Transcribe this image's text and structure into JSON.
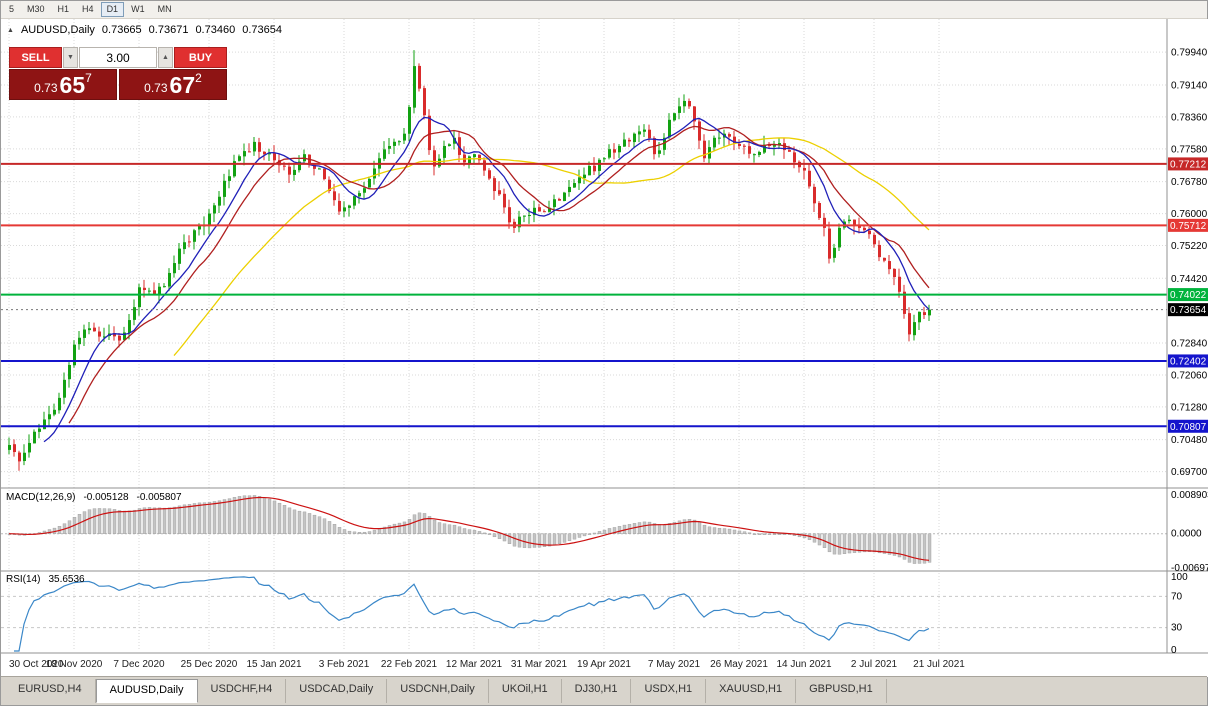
{
  "colors": {
    "bull": "#12a112",
    "bear": "#d92b2b",
    "grid": "#d9d9d9",
    "ma_fast": "#2020b8",
    "ma_mid": "#b02020",
    "ma_slow": "#ecd000",
    "macd_hist": "#c4c4c4",
    "macd_signal": "#cc1111",
    "rsi_line": "#3a87c8",
    "level_red1": "#c62828",
    "level_red2": "#e53935",
    "level_green": "#00b33c",
    "level_blue": "#1414cc",
    "level_black": "#000000",
    "sell_buy_btn": "#e03030",
    "price_box": "#8e1414"
  },
  "icons": {
    "collapse": "▲",
    "chevron_down": "▼",
    "chevron_up": "▲"
  },
  "toolbar": {
    "timeframes": [
      {
        "label": "5",
        "active": false
      },
      {
        "label": "M30",
        "active": false
      },
      {
        "label": "H1",
        "active": false
      },
      {
        "label": "H4",
        "active": false
      },
      {
        "label": "D1",
        "active": true
      },
      {
        "label": "W1",
        "active": false
      },
      {
        "label": "MN",
        "active": false
      }
    ]
  },
  "chart_header": {
    "symbol": "AUDUSD,Daily",
    "open": "0.73665",
    "high": "0.73671",
    "low": "0.73460",
    "close": "0.73654"
  },
  "trade_panel": {
    "sell_label": "SELL",
    "buy_label": "BUY",
    "volume": "3.00",
    "sell_price": {
      "small": "0.73",
      "big": "65",
      "pip": "7"
    },
    "buy_price": {
      "small": "0.73",
      "big": "67",
      "pip": "2"
    }
  },
  "macd_panel": {
    "name": "MACD(12,26,9)",
    "value_main": "-0.005128",
    "value_signal": "-0.005807",
    "axis_max": "0.008903",
    "axis_zero": "0.0000",
    "axis_min": "-0.006977",
    "params": {
      "fast": 12,
      "slow": 26,
      "signal": 9
    }
  },
  "rsi_panel": {
    "name": "RSI(14)",
    "value": "35.6536",
    "period": 14,
    "levels": [
      70,
      30
    ],
    "axis_labels": [
      "100",
      "70",
      "30",
      "0"
    ]
  },
  "bottom_tabs": [
    {
      "label": "EURUSD,H4",
      "active": false
    },
    {
      "label": "AUDUSD,Daily",
      "active": true
    },
    {
      "label": "USDCHF,H4",
      "active": false
    },
    {
      "label": "USDCAD,Daily",
      "active": false
    },
    {
      "label": "USDCNH,Daily",
      "active": false
    },
    {
      "label": "UKOil,H1",
      "active": false
    },
    {
      "label": "DJ30,H1",
      "active": false
    },
    {
      "label": "USDX,H1",
      "active": false
    },
    {
      "label": "XAUUSD,H1",
      "active": false
    },
    {
      "label": "GBPUSD,H1",
      "active": false
    }
  ],
  "chart_data": {
    "type": "candlestick",
    "symbol": "AUDUSD",
    "timeframe": "Daily",
    "last_ohlc": {
      "open": 0.73665,
      "high": 0.73671,
      "low": 0.7346,
      "close": 0.73654
    },
    "candle_count": 185,
    "y_axis": {
      "min": 0.693,
      "max": 0.8075,
      "ticks": [
        {
          "label": "0.79940",
          "value": 0.7994
        },
        {
          "label": "0.79140",
          "value": 0.7914
        },
        {
          "label": "0.78360",
          "value": 0.7836
        },
        {
          "label": "0.77580",
          "value": 0.7758
        },
        {
          "label": "0.76780",
          "value": 0.7678
        },
        {
          "label": "0.76000",
          "value": 0.76
        },
        {
          "label": "0.75220",
          "value": 0.7522
        },
        {
          "label": "0.74420",
          "value": 0.7442
        },
        {
          "label": "0.72840",
          "value": 0.7284
        },
        {
          "label": "0.72060",
          "value": 0.7206
        },
        {
          "label": "0.71280",
          "value": 0.7128
        },
        {
          "label": "0.70480",
          "value": 0.7048
        },
        {
          "label": "0.69700",
          "value": 0.697
        }
      ]
    },
    "horizontal_levels": [
      {
        "label": "0.77212",
        "value": 0.77212,
        "color_key": "level_red1",
        "current": false
      },
      {
        "label": "0.75712",
        "value": 0.75712,
        "color_key": "level_red2",
        "current": false
      },
      {
        "label": "0.74022",
        "value": 0.74022,
        "color_key": "level_green",
        "current": false
      },
      {
        "label": "0.73654",
        "value": 0.73654,
        "color_key": "level_black",
        "current": true
      },
      {
        "label": "0.72402",
        "value": 0.72402,
        "color_key": "level_blue",
        "current": false
      },
      {
        "label": "0.70807",
        "value": 0.70807,
        "color_key": "level_blue",
        "current": false
      }
    ],
    "x_dates": [
      {
        "label": "30 Oct 2020",
        "i": 0
      },
      {
        "label": "18 Nov 2020",
        "i": 13
      },
      {
        "label": "7 Dec 2020",
        "i": 26
      },
      {
        "label": "25 Dec 2020",
        "i": 40
      },
      {
        "label": "15 Jan 2021",
        "i": 53
      },
      {
        "label": "3 Feb 2021",
        "i": 67
      },
      {
        "label": "22 Feb 2021",
        "i": 80
      },
      {
        "label": "12 Mar 2021",
        "i": 93
      },
      {
        "label": "31 Mar 2021",
        "i": 106
      },
      {
        "label": "19 Apr 2021",
        "i": 119
      },
      {
        "label": "7 May 2021",
        "i": 133
      },
      {
        "label": "26 May 2021",
        "i": 146
      },
      {
        "label": "14 Jun 2021",
        "i": 159
      },
      {
        "label": "2 Jul 2021",
        "i": 173
      },
      {
        "label": "21 Jul 2021",
        "i": 186
      }
    ],
    "moving_averages": [
      {
        "period": 34,
        "color_key": "ma_slow"
      },
      {
        "period": 13,
        "color_key": "ma_mid"
      },
      {
        "period": 8,
        "color_key": "ma_fast"
      }
    ],
    "price_anchors": [
      [
        0,
        0.7035
      ],
      [
        2,
        0.6995
      ],
      [
        4,
        0.704
      ],
      [
        6,
        0.7075
      ],
      [
        8,
        0.711
      ],
      [
        10,
        0.715
      ],
      [
        13,
        0.728
      ],
      [
        16,
        0.732
      ],
      [
        19,
        0.73
      ],
      [
        22,
        0.729
      ],
      [
        24,
        0.734
      ],
      [
        26,
        0.742
      ],
      [
        29,
        0.74
      ],
      [
        32,
        0.7455
      ],
      [
        35,
        0.753
      ],
      [
        38,
        0.757
      ],
      [
        40,
        0.76
      ],
      [
        43,
        0.768
      ],
      [
        46,
        0.774
      ],
      [
        49,
        0.7775
      ],
      [
        51,
        0.7745
      ],
      [
        53,
        0.773
      ],
      [
        56,
        0.7695
      ],
      [
        59,
        0.7745
      ],
      [
        62,
        0.771
      ],
      [
        64,
        0.7655
      ],
      [
        66,
        0.7605
      ],
      [
        67,
        0.7615
      ],
      [
        70,
        0.765
      ],
      [
        73,
        0.771
      ],
      [
        76,
        0.7765
      ],
      [
        79,
        0.7795
      ],
      [
        80,
        0.786
      ],
      [
        81,
        0.796
      ],
      [
        82,
        0.7905
      ],
      [
        83,
        0.784
      ],
      [
        84,
        0.7755
      ],
      [
        85,
        0.7715
      ],
      [
        87,
        0.7765
      ],
      [
        89,
        0.7785
      ],
      [
        91,
        0.7725
      ],
      [
        93,
        0.7745
      ],
      [
        95,
        0.7705
      ],
      [
        97,
        0.7655
      ],
      [
        99,
        0.7615
      ],
      [
        101,
        0.7565
      ],
      [
        103,
        0.7595
      ],
      [
        106,
        0.7605
      ],
      [
        109,
        0.7635
      ],
      [
        112,
        0.7665
      ],
      [
        115,
        0.7695
      ],
      [
        119,
        0.7735
      ],
      [
        122,
        0.7765
      ],
      [
        125,
        0.7795
      ],
      [
        127,
        0.7805
      ],
      [
        129,
        0.7745
      ],
      [
        131,
        0.7785
      ],
      [
        133,
        0.7845
      ],
      [
        135,
        0.7875
      ],
      [
        137,
        0.7825
      ],
      [
        139,
        0.7735
      ],
      [
        141,
        0.7785
      ],
      [
        143,
        0.7795
      ],
      [
        146,
        0.7765
      ],
      [
        149,
        0.7745
      ],
      [
        152,
        0.7765
      ],
      [
        155,
        0.7755
      ],
      [
        157,
        0.7725
      ],
      [
        159,
        0.7705
      ],
      [
        161,
        0.7625
      ],
      [
        163,
        0.7565
      ],
      [
        164,
        0.749
      ],
      [
        166,
        0.7565
      ],
      [
        168,
        0.7585
      ],
      [
        170,
        0.7565
      ],
      [
        173,
        0.7525
      ],
      [
        175,
        0.7485
      ],
      [
        177,
        0.7445
      ],
      [
        179,
        0.7355
      ],
      [
        180,
        0.7305
      ],
      [
        181,
        0.7335
      ],
      [
        182,
        0.736
      ],
      [
        184,
        0.73654
      ]
    ],
    "wick_overrides": [
      [
        2,
        "low",
        0.6972
      ],
      [
        81,
        "high",
        0.7999
      ],
      [
        135,
        "high",
        0.7891
      ],
      [
        164,
        "low",
        0.7478
      ],
      [
        180,
        "low",
        0.7288
      ]
    ]
  }
}
